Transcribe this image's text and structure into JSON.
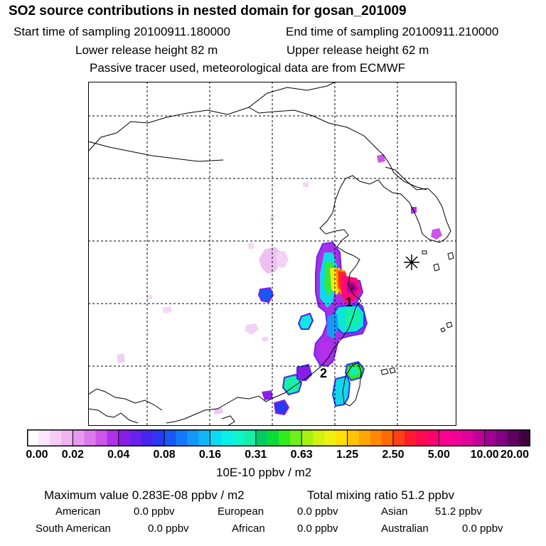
{
  "header": {
    "title": "SO2 source contributions in nested domain for gosan_201009",
    "start_time": "Start time of sampling 20100911.180000",
    "end_time": "End time of sampling 20100911.210000",
    "lower_release": "Lower release height   82 m",
    "upper_release": "Upper release height   62 m",
    "tracer_note": "Passive tracer used, meteorological data are from ECMWF"
  },
  "map": {
    "receptor_marker": "receptor-asterisk",
    "point_labels": [
      "1",
      "2"
    ]
  },
  "colorbar": {
    "ticks": [
      "0.00",
      "0.02",
      "0.04",
      "0.08",
      "0.16",
      "0.31",
      "0.63",
      "1.25",
      "2.50",
      "5.00",
      "10.00",
      "20.00"
    ],
    "colors": [
      "#ffffff",
      "#fbe6fb",
      "#f6ccf6",
      "#f0b3f0",
      "#e899ee",
      "#dc7aec",
      "#cc55ea",
      "#b130ea",
      "#8a1ee8",
      "#6a22ea",
      "#4626f0",
      "#2a38f2",
      "#1858f6",
      "#1478fa",
      "#1298fa",
      "#10b8f8",
      "#06dcf4",
      "#08f0e8",
      "#10f4cc",
      "#14f0a8",
      "#00cc66",
      "#08dc3a",
      "#30ec1c",
      "#70f014",
      "#a8f010",
      "#d4f010",
      "#f0f010",
      "#ffe000",
      "#ffc400",
      "#ffa600",
      "#ff8800",
      "#ff6a00",
      "#ff4014",
      "#ff1a2c",
      "#ff0a50",
      "#ff0070",
      "#ff0090",
      "#f20098",
      "#e0009c",
      "#c2009a",
      "#a00090",
      "#800080",
      "#600060",
      "#400040"
    ],
    "units": "10E-10 ppbv / m2"
  },
  "summary": {
    "max_value": "Maximum value  0.283E-08 ppbv / m2",
    "total_mixing": "Total mixing ratio      51.2 ppbv",
    "regions": [
      {
        "name": "American",
        "value": "0.0 ppbv"
      },
      {
        "name": "European",
        "value": "0.0 ppbv"
      },
      {
        "name": "Asian",
        "value": "51.2 ppbv"
      },
      {
        "name": "South American",
        "value": "0.0 ppbv"
      },
      {
        "name": "African",
        "value": "0.0 ppbv"
      },
      {
        "name": "Australian",
        "value": "0.0 ppbv"
      }
    ]
  }
}
